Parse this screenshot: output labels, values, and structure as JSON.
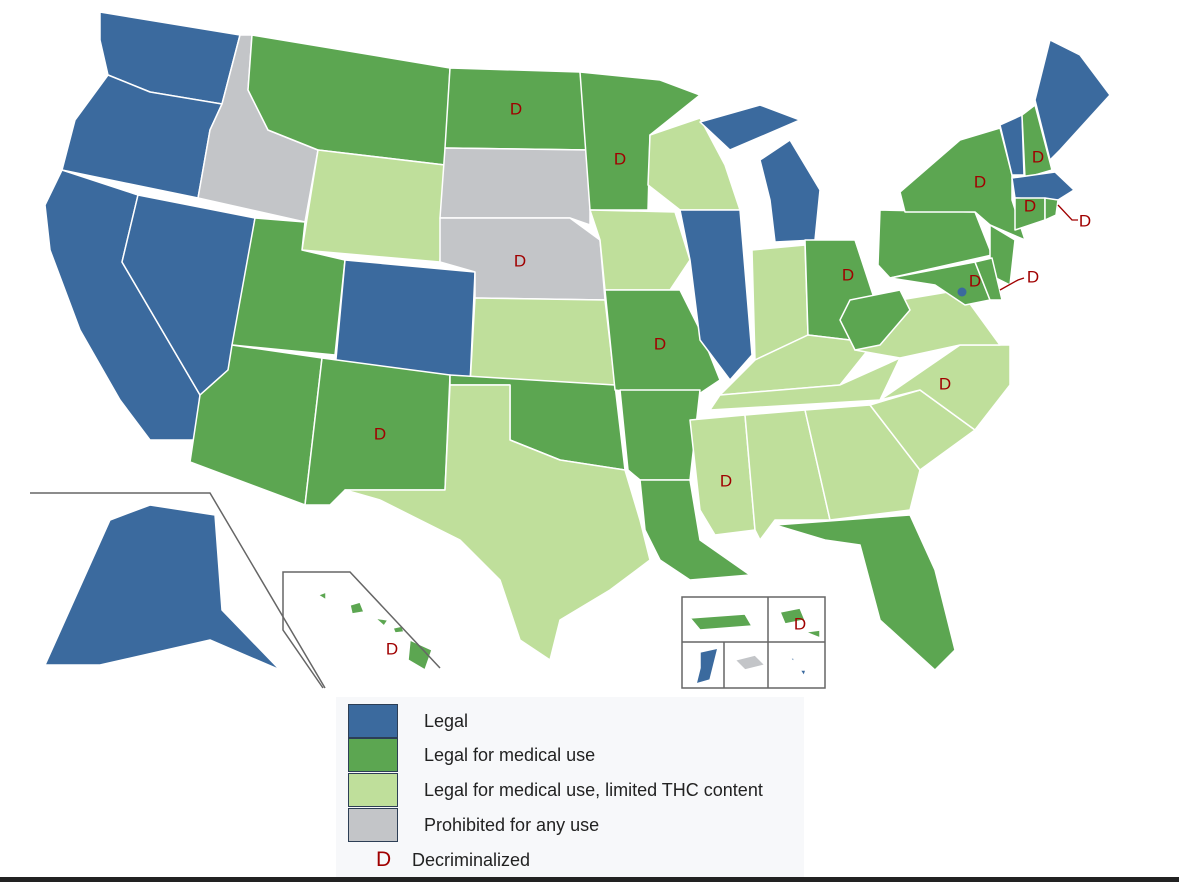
{
  "colors": {
    "legal": "#3b6a9e",
    "medical": "#5ca651",
    "limited_thc": "#bfdf9b",
    "prohibited": "#c3c5c8",
    "decriminalized": "#a00000"
  },
  "legend": {
    "items": [
      {
        "key": "legal",
        "label": "Legal"
      },
      {
        "key": "medical",
        "label": "Legal for medical use"
      },
      {
        "key": "limited_thc",
        "label": "Legal for medical use, limited THC content"
      },
      {
        "key": "prohibited",
        "label": "Prohibited for any use"
      }
    ],
    "decriminalized_symbol": "D",
    "decriminalized_label": "Decriminalized"
  },
  "regions": {
    "WA": "legal",
    "OR": "legal",
    "CA": "legal",
    "NV": "legal",
    "ID": "prohibited",
    "MT": "medical",
    "WY": "limited_thc",
    "UT": "medical",
    "CO": "legal",
    "AZ": "medical",
    "NM": "medical",
    "ND": "medical",
    "SD": "prohibited",
    "NE": "prohibited",
    "KS": "limited_thc",
    "OK": "medical",
    "TX": "limited_thc",
    "MN": "medical",
    "IA": "limited_thc",
    "MO": "medical",
    "AR": "medical",
    "LA": "medical",
    "WI": "limited_thc",
    "IL": "legal",
    "MI": "legal",
    "IN": "limited_thc",
    "OH": "medical",
    "KY": "limited_thc",
    "TN": "limited_thc",
    "MS": "limited_thc",
    "AL": "limited_thc",
    "GA": "limited_thc",
    "FL": "medical",
    "SC": "limited_thc",
    "NC": "limited_thc",
    "VA": "limited_thc",
    "WV": "medical",
    "PA": "medical",
    "NY": "medical",
    "NJ": "medical",
    "MD": "medical",
    "DE": "medical",
    "VT": "legal",
    "NH": "medical",
    "ME": "legal",
    "MA": "legal",
    "CT": "medical",
    "RI": "medical",
    "AK": "legal",
    "HI": "medical",
    "DC": "legal",
    "PR": "medical",
    "VI": "medical",
    "GU": "legal",
    "MP": "prohibited",
    "AS": "legal"
  },
  "decriminalized": [
    "ND",
    "MN",
    "NE",
    "MO",
    "NM",
    "MS",
    "NC",
    "OH",
    "NY",
    "NH",
    "CT",
    "RI",
    "MD",
    "DE",
    "HI",
    "VI"
  ]
}
